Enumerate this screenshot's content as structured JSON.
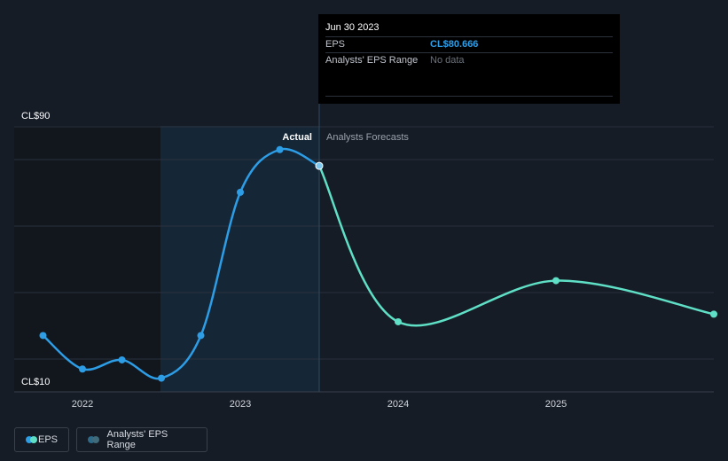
{
  "chart_data": {
    "type": "line",
    "x_ticks": [
      "2022",
      "2023",
      "2024",
      "2025"
    ],
    "y_tick_labels": [
      "CL$90",
      "CL$10"
    ],
    "ylim": [
      10,
      90
    ],
    "series": [
      {
        "name": "Actual",
        "color": "#2d9de6",
        "points": [
          {
            "x": 2021.75,
            "y": 25
          },
          {
            "x": 2022.0,
            "y": 14
          },
          {
            "x": 2022.25,
            "y": 17
          },
          {
            "x": 2022.5,
            "y": 11
          },
          {
            "x": 2022.75,
            "y": 25
          },
          {
            "x": 2023.0,
            "y": 72
          },
          {
            "x": 2023.25,
            "y": 86
          },
          {
            "x": 2023.5,
            "y": 80.666
          }
        ]
      },
      {
        "name": "Analysts Forecasts",
        "color": "#5fe0c6",
        "points": [
          {
            "x": 2023.5,
            "y": 80.666
          },
          {
            "x": 2024.0,
            "y": 29.5
          },
          {
            "x": 2025.0,
            "y": 43
          },
          {
            "x": 2026.0,
            "y": 32
          }
        ]
      }
    ],
    "divider_x": 2023.5,
    "label_actual": "Actual",
    "label_forecast": "Analysts Forecasts"
  },
  "tooltip": {
    "date": "Jun 30 2023",
    "eps_label": "EPS",
    "eps_value": "CL$80.666",
    "range_label": "Analysts' EPS Range",
    "range_value": "No data"
  },
  "legend": {
    "eps": "EPS",
    "range": "Analysts' EPS Range"
  },
  "colors": {
    "actual": "#2d9de6",
    "forecast": "#5fe0c6",
    "range": "#2c6b8a",
    "background": "#161c26"
  }
}
